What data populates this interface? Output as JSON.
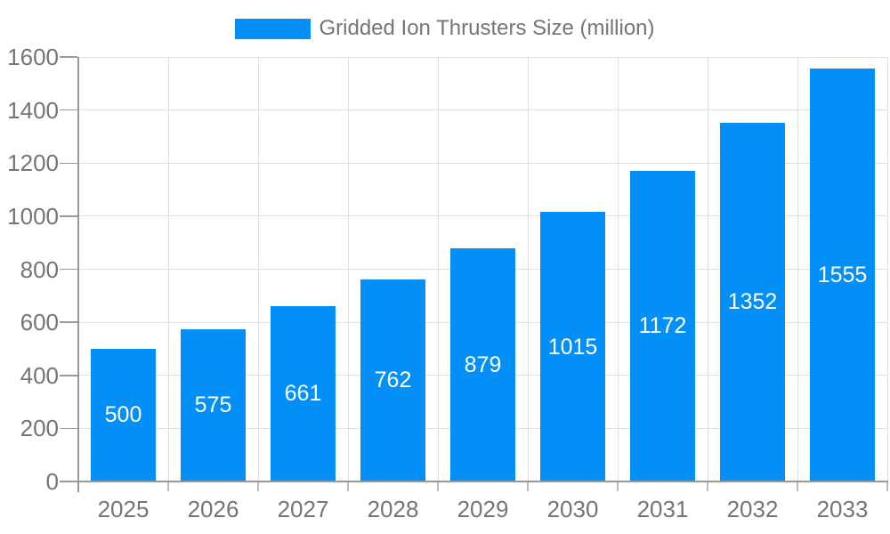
{
  "legend": {
    "label": "Gridded Ion Thrusters Size (million)"
  },
  "chart_data": {
    "type": "bar",
    "title": "Gridded Ion Thrusters Size (million)",
    "categories": [
      "2025",
      "2026",
      "2027",
      "2028",
      "2029",
      "2030",
      "2031",
      "2032",
      "2033"
    ],
    "values": [
      500,
      575,
      661,
      762,
      879,
      1015,
      1172,
      1352,
      1555
    ],
    "xlabel": "",
    "ylabel": "",
    "ylim": [
      0,
      1600
    ],
    "yticks": [
      0,
      200,
      400,
      600,
      800,
      1000,
      1200,
      1400,
      1600
    ],
    "grid": true,
    "legend_position": "top",
    "data_labels_position": "inside-center",
    "colors": {
      "bar": "#0290F8",
      "grid_line": "#E0E0E0",
      "axis_line": "#999999",
      "tick_mark": "#BBBBBB",
      "tick_label": "#757575",
      "legend_text": "#757575",
      "data_label": "#FFFFFF",
      "background": "#FFFFFF"
    }
  }
}
